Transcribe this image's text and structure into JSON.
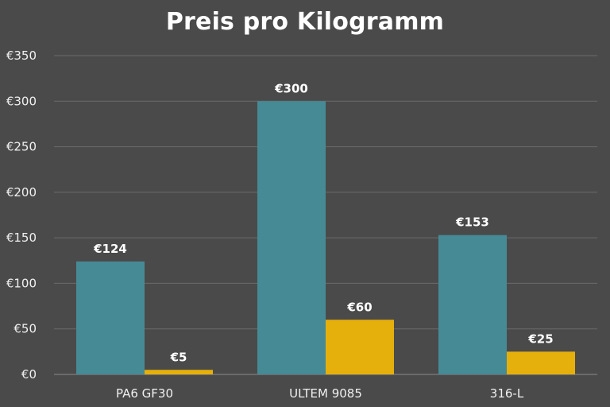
{
  "chart_data": {
    "type": "bar",
    "title": "Preis pro Kilogramm",
    "categories": [
      "PA6 GF30",
      "ULTEM 9085",
      "316-L"
    ],
    "series": [
      {
        "values": [
          124,
          300,
          153
        ],
        "color": "#468a95"
      },
      {
        "values": [
          5,
          60,
          25
        ],
        "color": "#e6b00c"
      }
    ],
    "value_labels": [
      [
        "€124",
        "€300",
        "€153"
      ],
      [
        "€5",
        "€60",
        "€25"
      ]
    ],
    "yticks": [
      0,
      50,
      100,
      150,
      200,
      250,
      300,
      350
    ],
    "ytick_labels": [
      "€0",
      "€50",
      "€100",
      "€150",
      "€200",
      "€250",
      "€300",
      "€350"
    ],
    "ylim": [
      0,
      350
    ],
    "xlabel": "",
    "ylabel": "",
    "grid": true,
    "legend": false
  },
  "colors": {
    "background": "#4a4a4a",
    "grid": "#6a6a6a",
    "axis": "#8a8a8a"
  }
}
